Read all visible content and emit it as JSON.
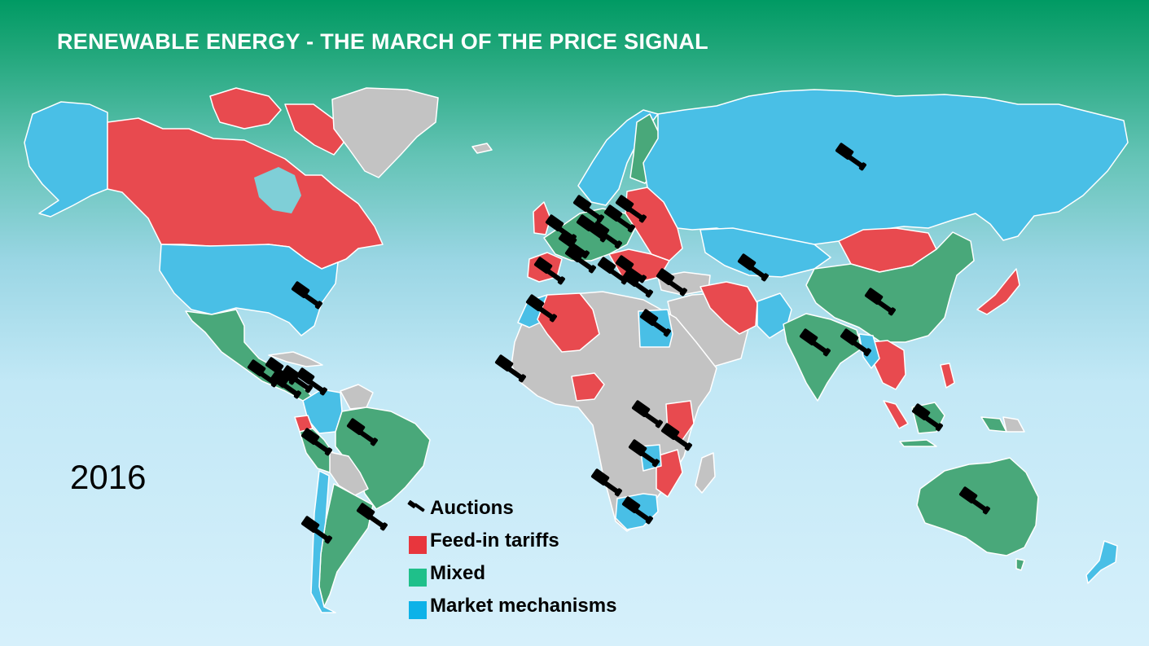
{
  "slide": {
    "title": "RENEWABLE ENERGY - THE MARCH OF THE PRICE SIGNAL",
    "year": "2016"
  },
  "colors": {
    "feed_in_tariffs": "#e84a4f",
    "mixed": "#49a87a",
    "market_mechanisms": "#49bfe6",
    "no_policy": "#c3c3c3",
    "auction_icon": "#000000"
  },
  "legend": {
    "items": [
      {
        "key": "auctions",
        "label": "Auctions",
        "icon": "gavel-icon"
      },
      {
        "key": "feed_in_tariffs",
        "label": "Feed-in tariffs",
        "color": "#e8363d"
      },
      {
        "key": "mixed",
        "label": "Mixed",
        "color": "#1fc08a"
      },
      {
        "key": "market_mechanisms",
        "label": "Market mechanisms",
        "color": "#0db2e8"
      }
    ]
  }
}
